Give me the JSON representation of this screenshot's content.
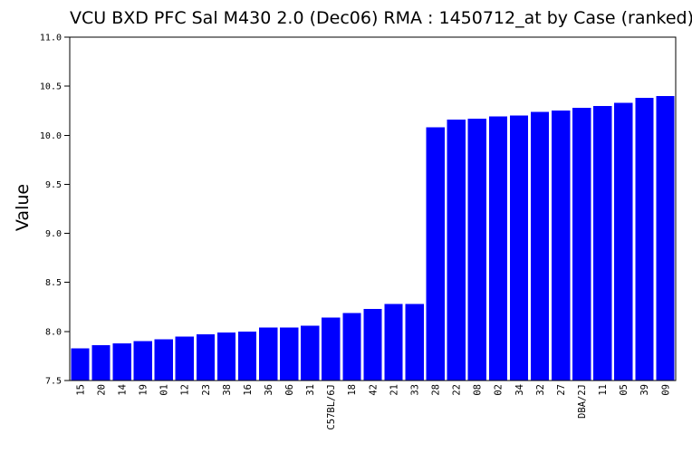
{
  "figure": {
    "background_color": "#ffffff"
  },
  "chart_data": {
    "type": "bar",
    "title": "VCU BXD PFC Sal M430 2.0 (Dec06) RMA : 1450712_at by Case (ranked)",
    "ylabel": "Value",
    "xlabel": "",
    "categories": [
      "15",
      "20",
      "14",
      "19",
      "01",
      "12",
      "23",
      "38",
      "16",
      "36",
      "06",
      "31",
      "C57BL/6J",
      "18",
      "42",
      "21",
      "33",
      "28",
      "22",
      "08",
      "02",
      "34",
      "32",
      "27",
      "DBA/2J",
      "11",
      "05",
      "39",
      "09"
    ],
    "values": [
      7.83,
      7.86,
      7.88,
      7.9,
      7.92,
      7.95,
      7.97,
      7.99,
      8.0,
      8.04,
      8.04,
      8.06,
      8.14,
      8.19,
      8.23,
      8.28,
      8.28,
      10.08,
      10.16,
      10.17,
      10.19,
      10.2,
      10.24,
      10.25,
      10.28,
      10.3,
      10.33,
      10.38,
      10.4
    ],
    "ylim": [
      7.5,
      11.0
    ],
    "yticks": [
      7.5,
      8.0,
      8.5,
      9.0,
      9.5,
      10.0,
      10.5,
      11.0
    ],
    "ytick_decimals": 1,
    "x_tick_rotation_deg": 90,
    "bar_color": "#0000ff",
    "axis_color": "#000000",
    "text_color": "#000000",
    "grid": false,
    "legend": "none"
  }
}
